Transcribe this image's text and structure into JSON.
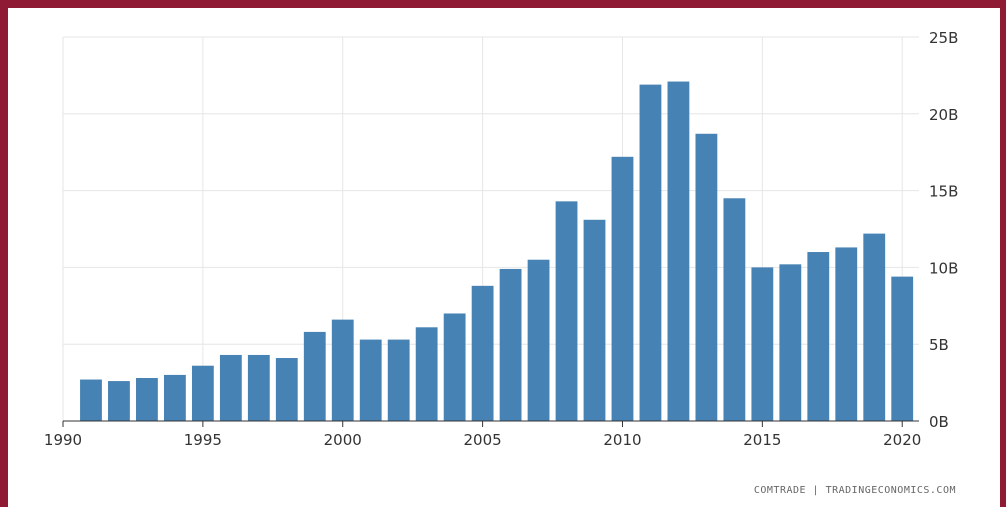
{
  "chart_data": {
    "type": "bar",
    "title": "",
    "xlabel": "",
    "ylabel": "",
    "x": [
      1991,
      1992,
      1993,
      1994,
      1995,
      1996,
      1997,
      1998,
      1999,
      2000,
      2001,
      2002,
      2003,
      2004,
      2005,
      2006,
      2007,
      2008,
      2009,
      2010,
      2011,
      2012,
      2013,
      2014,
      2015,
      2016,
      2017,
      2018,
      2019,
      2020
    ],
    "values": [
      2.7,
      2.6,
      2.8,
      3.0,
      3.6,
      4.3,
      4.3,
      4.1,
      5.8,
      6.6,
      5.3,
      5.3,
      6.1,
      7.0,
      8.8,
      9.9,
      10.5,
      14.3,
      13.1,
      17.2,
      21.9,
      22.1,
      18.7,
      14.5,
      10.0,
      10.2,
      11.0,
      11.3,
      12.2,
      9.4
    ],
    "unit": "billions",
    "xlim": [
      1990,
      2020.6
    ],
    "ylim": [
      0,
      25
    ],
    "x_ticks": [
      1990,
      1995,
      2000,
      2005,
      2010,
      2015,
      2020
    ],
    "x_tick_labels": [
      "1990",
      "1995",
      "2000",
      "2005",
      "2010",
      "2015",
      "2020"
    ],
    "y_ticks": [
      0,
      5,
      10,
      15,
      20,
      25
    ],
    "y_tick_labels": [
      "0B",
      "5B",
      "10B",
      "15B",
      "20B",
      "25B"
    ],
    "y_axis_side": "right",
    "grid": true,
    "bar_color": "#4682b4",
    "grid_color": "#e6e6e6",
    "source": "COMTRADE | TRADINGECONOMICS.COM"
  }
}
